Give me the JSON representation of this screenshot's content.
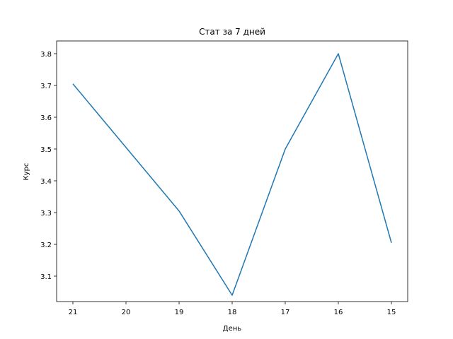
{
  "chart_data": {
    "type": "line",
    "title": "Стат за 7 дней",
    "xlabel": "День",
    "ylabel": "Курс",
    "x_ticks": [
      "21",
      "20",
      "19",
      "18",
      "17",
      "16",
      "15"
    ],
    "series": [
      {
        "color": "#1f77b4",
        "points": [
          {
            "x": "21",
            "y": 3.705
          },
          {
            "x": "19",
            "y": 3.305
          },
          {
            "x": "18",
            "y": 3.04
          },
          {
            "x": "17",
            "y": 3.5
          },
          {
            "x": "16",
            "y": 3.8
          },
          {
            "x": "15",
            "y": 3.205
          }
        ]
      }
    ],
    "y_ticks": [
      "3.1",
      "3.2",
      "3.3",
      "3.4",
      "3.5",
      "3.6",
      "3.7",
      "3.8"
    ],
    "ylim": [
      3.02,
      3.84
    ],
    "grid": false,
    "legend": false
  }
}
